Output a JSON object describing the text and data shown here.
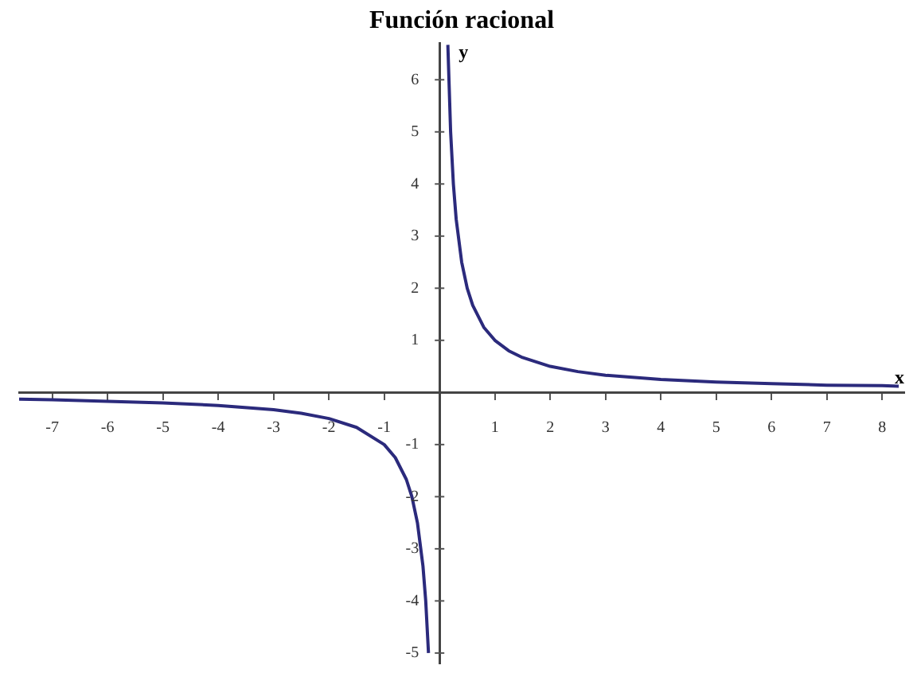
{
  "chart_data": {
    "type": "line",
    "title": "Función racional",
    "xlabel": "x",
    "ylabel": "y",
    "series": [
      {
        "color": "#2b2a7c",
        "x": [
          0.15,
          0.2,
          0.25,
          0.3,
          0.4,
          0.5,
          0.6,
          0.8,
          1,
          1.25,
          1.5,
          2,
          2.5,
          3,
          4,
          5,
          6,
          7,
          8,
          8.3
        ],
        "values": [
          6.67,
          5,
          4,
          3.33,
          2.5,
          2,
          1.67,
          1.25,
          1,
          0.8,
          0.67,
          0.5,
          0.4,
          0.33,
          0.25,
          0.2,
          0.17,
          0.14,
          0.13,
          0.12
        ]
      },
      {
        "color": "#2b2a7c",
        "x": [
          -7.6,
          -7,
          -6,
          -5,
          -4,
          -3,
          -2.5,
          -2,
          -1.5,
          -1,
          -0.8,
          -0.6,
          -0.5,
          -0.4,
          -0.3,
          -0.25,
          -0.2
        ],
        "values": [
          -0.13,
          -0.14,
          -0.17,
          -0.2,
          -0.25,
          -0.33,
          -0.4,
          -0.5,
          -0.67,
          -1,
          -1.25,
          -1.67,
          -2,
          -2.5,
          -3.33,
          -4,
          -5
        ]
      }
    ],
    "xlim": [
      -7.6,
      8.4
    ],
    "xticks": [
      -7,
      -6,
      -5,
      -4,
      -3,
      -2,
      -1,
      1,
      2,
      3,
      4,
      5,
      6,
      7,
      8
    ],
    "ylim": [
      -5.2,
      6.7
    ],
    "yticks": [
      -5,
      -4,
      -3,
      -2,
      -1,
      1,
      2,
      3,
      4,
      5,
      6
    ],
    "grid": false,
    "legend": false,
    "marker": "none",
    "line_style": "solid"
  }
}
